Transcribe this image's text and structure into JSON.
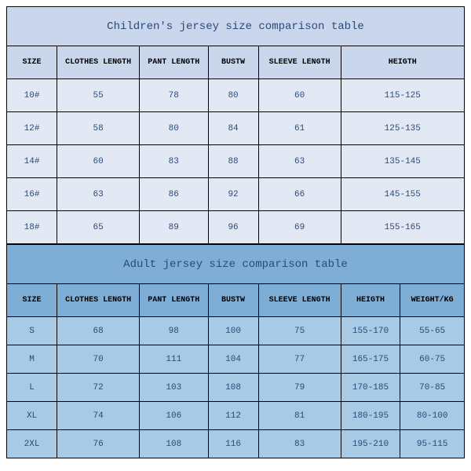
{
  "children_table": {
    "type": "table",
    "title": "Children's jersey size comparison table",
    "title_color": "#2a4a7a",
    "title_fontsize": 14,
    "header_bg": "#c9d6eb",
    "row_bg": "#e3e9f4",
    "border_color": "#000000",
    "text_color": "#2a4a7a",
    "columns": [
      "SIZE",
      "CLOTHES LENGTH",
      "PANT LENGTH",
      "BUSTW",
      "SLEEVE LENGTH",
      "HEIGTH"
    ],
    "rows": [
      [
        "10#",
        "55",
        "78",
        "80",
        "60",
        "115-125"
      ],
      [
        "12#",
        "58",
        "80",
        "84",
        "61",
        "125-135"
      ],
      [
        "14#",
        "60",
        "83",
        "88",
        "63",
        "135-145"
      ],
      [
        "16#",
        "63",
        "86",
        "92",
        "66",
        "145-155"
      ],
      [
        "18#",
        "65",
        "89",
        "96",
        "69",
        "155-165"
      ]
    ]
  },
  "adult_table": {
    "type": "table",
    "title": "Adult jersey size comparison table",
    "title_color": "#2a4a7a",
    "title_fontsize": 14,
    "header_bg": "#7eaed6",
    "row_bg": "#a8cae4",
    "border_color": "#000000",
    "text_color": "#2a4a7a",
    "columns": [
      "SIZE",
      "CLOTHES LENGTH",
      "PANT LENGTH",
      "BUSTW",
      "SLEEVE LENGTH",
      "HEIGTH",
      "WEIGHT/KG"
    ],
    "rows": [
      [
        "S",
        "68",
        "98",
        "100",
        "75",
        "155-170",
        "55-65"
      ],
      [
        "M",
        "70",
        "111",
        "104",
        "77",
        "165-175",
        "60-75"
      ],
      [
        "L",
        "72",
        "103",
        "108",
        "79",
        "170-185",
        "70-85"
      ],
      [
        "XL",
        "74",
        "106",
        "112",
        "81",
        "180-195",
        "80-100"
      ],
      [
        "2XL",
        "76",
        "108",
        "116",
        "83",
        "195-210",
        "95-115"
      ]
    ]
  }
}
